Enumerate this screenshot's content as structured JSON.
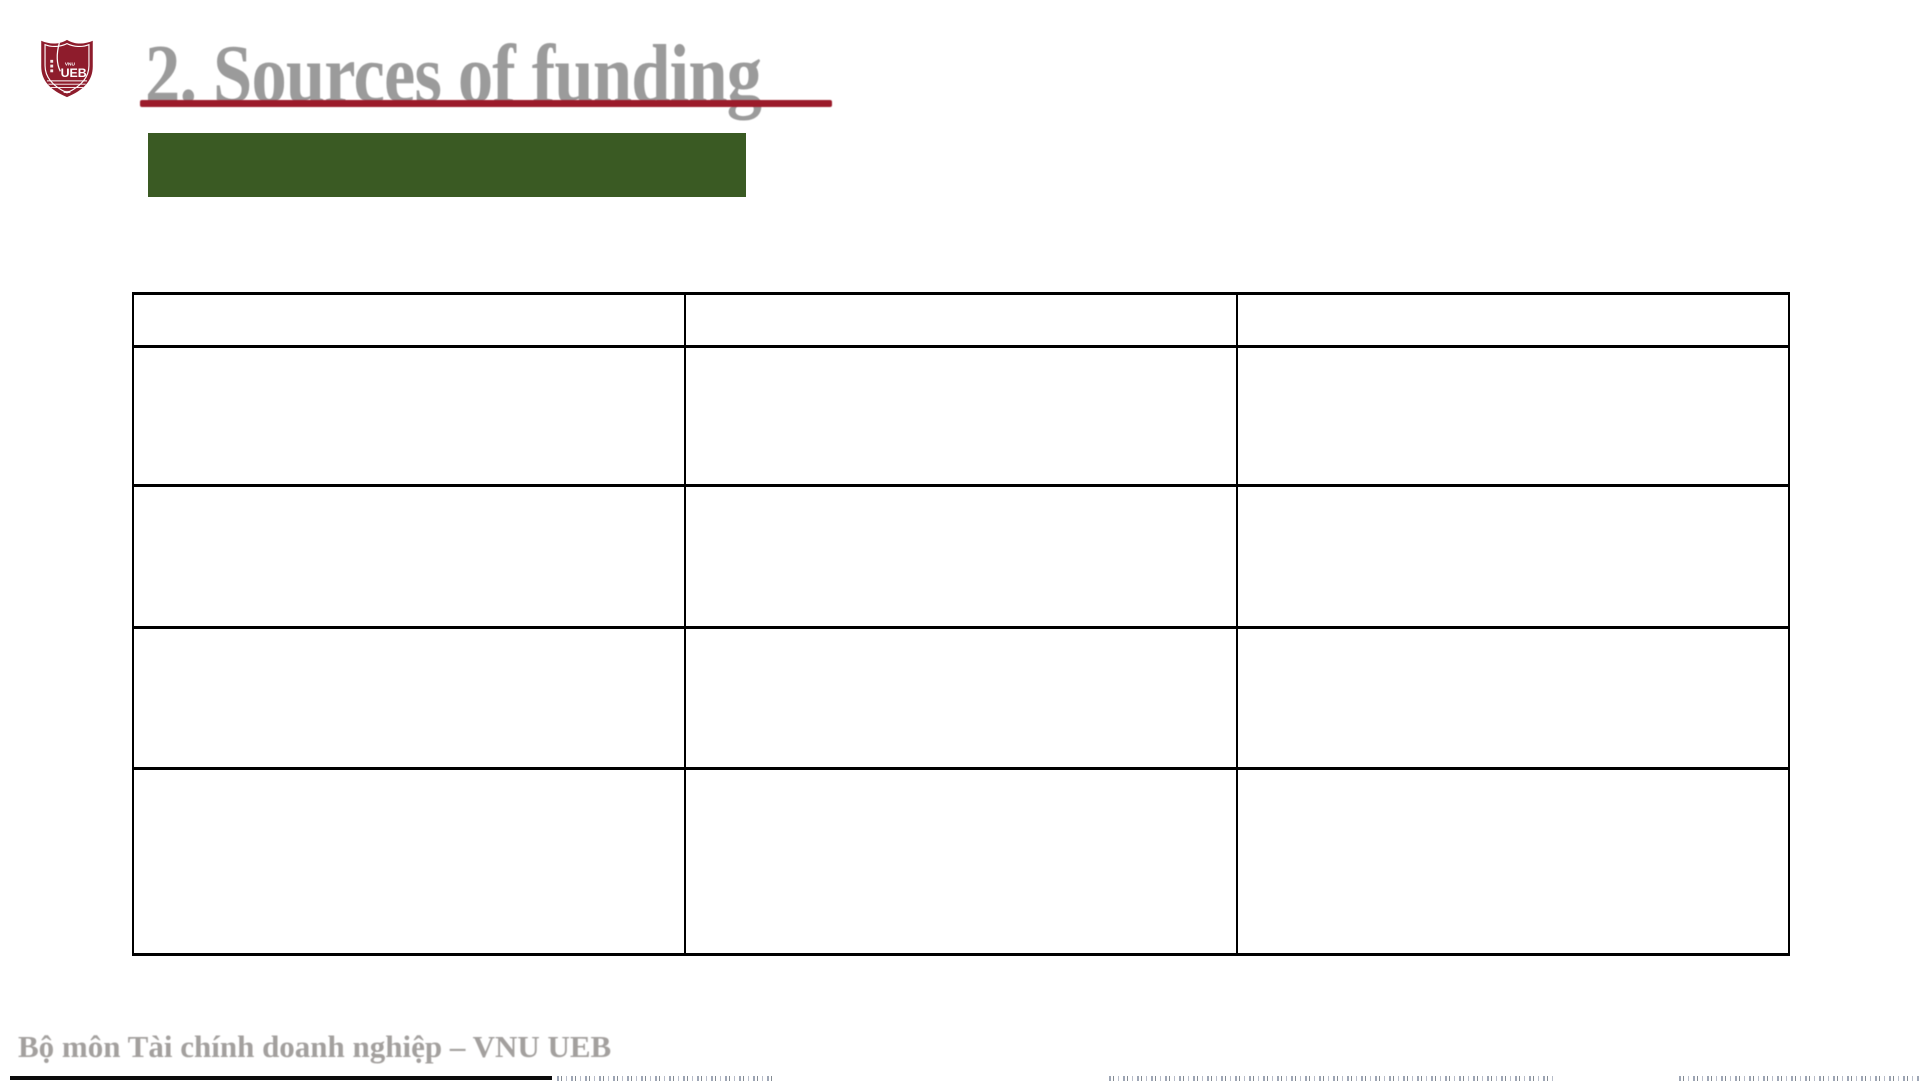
{
  "slide": {
    "title": "2. Sources of funding",
    "footer": "Bộ môn Tài chính doanh nghiệp – VNU UEB",
    "logo": {
      "vnu": "VNU",
      "ueb": "UEB"
    },
    "banner": {
      "text": ""
    },
    "colors": {
      "maroon": "#8E1C2C",
      "underline_red": "#9B1B2A",
      "banner_green": "#3A5A23",
      "title_gray": "#9B9B9B",
      "footer_gray": "#A3A09E"
    },
    "table": {
      "column_count": 3,
      "row_count": 5,
      "cells": [
        [
          "",
          "",
          ""
        ],
        [
          "",
          "",
          ""
        ],
        [
          "",
          "",
          ""
        ],
        [
          "",
          "",
          ""
        ],
        [
          "",
          "",
          ""
        ]
      ]
    }
  }
}
